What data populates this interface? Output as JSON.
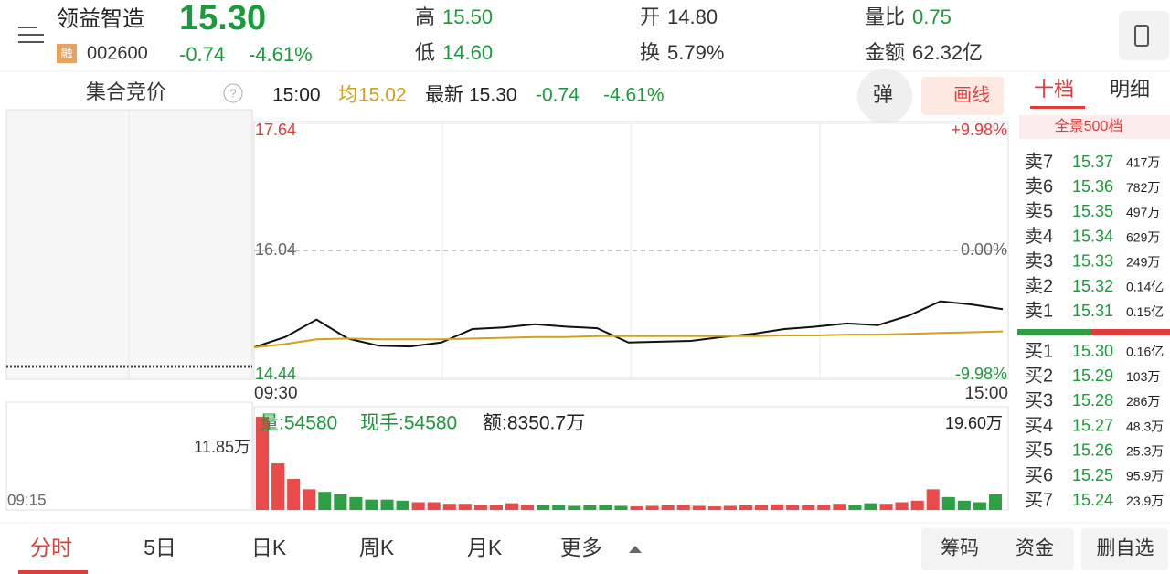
{
  "header": {
    "name": "领益智造",
    "price": "15.30",
    "badge": "融",
    "code": "002600",
    "change": "-0.74",
    "pct": "-4.61%",
    "stats": [
      {
        "label": "高",
        "value": "15.50",
        "color": "#1a9a3a"
      },
      {
        "label": "低",
        "value": "14.60",
        "color": "#1a9a3a"
      },
      {
        "label": "开",
        "value": "14.80",
        "color": "#333333"
      },
      {
        "label": "换",
        "value": "5.79%",
        "color": "#333333"
      },
      {
        "label": "量比",
        "value": "0.75",
        "color": "#1a9a3a"
      },
      {
        "label": "金额",
        "value": "62.32亿",
        "color": "#333333"
      }
    ]
  },
  "auction": {
    "title": "集合竞价",
    "time": "09:15",
    "volume": "11.85万"
  },
  "info": {
    "time": "15:00",
    "avg_label": "均",
    "avg": "15.02",
    "latest_label": "最新",
    "latest": "15.30",
    "change": "-0.74",
    "pct": "-4.61%",
    "popup": "弹",
    "draw": "画线"
  },
  "chart_data": {
    "type": "line",
    "ylim": [
      14.44,
      17.64
    ],
    "yticks": [
      17.64,
      16.04,
      14.44
    ],
    "pct_labels": [
      "+9.98%",
      "0.00%",
      "-9.98%"
    ],
    "x_labels": [
      "09:30",
      "15:00"
    ],
    "series": [
      {
        "name": "price",
        "color": "#111111",
        "values": [
          14.82,
          14.95,
          15.17,
          14.93,
          14.84,
          14.83,
          14.88,
          15.05,
          15.07,
          15.11,
          15.08,
          15.06,
          14.88,
          14.89,
          14.9,
          14.95,
          14.99,
          15.05,
          15.08,
          15.12,
          15.1,
          15.22,
          15.4,
          15.36,
          15.3
        ]
      },
      {
        "name": "average",
        "color": "#d4a017",
        "values": [
          14.82,
          14.86,
          14.92,
          14.93,
          14.92,
          14.92,
          14.92,
          14.93,
          14.94,
          14.95,
          14.95,
          14.96,
          14.96,
          14.96,
          14.96,
          14.96,
          14.96,
          14.97,
          14.97,
          14.98,
          14.98,
          14.99,
          15.0,
          15.01,
          15.02
        ]
      }
    ]
  },
  "volume_chart": {
    "type": "bar",
    "ylim": [
      0,
      19.6
    ],
    "max_label": "19.60万",
    "labels": [
      "量:54580",
      "现手:54580",
      "额:8350.7万"
    ],
    "up_color": "#e94b4b",
    "down_color": "#2ea043",
    "values": [
      18,
      9,
      6,
      4,
      3.5,
      3,
      2.5,
      2,
      2,
      1.8,
      1.5,
      1.5,
      1.2,
      1.2,
      1,
      1,
      1.3,
      1,
      0.9,
      1,
      0.8,
      0.9,
      1,
      0.8,
      0.7,
      0.8,
      0.9,
      1,
      0.8,
      0.7,
      0.8,
      0.9,
      1,
      1.1,
      1,
      0.9,
      1,
      1.2,
      1,
      1.3,
      1.2,
      1.5,
      1.8,
      4,
      2.5,
      1.8,
      1.5,
      3
    ]
  },
  "order_book": {
    "tabs": [
      "十档",
      "明细"
    ],
    "panorama": "全景500档",
    "asks": [
      [
        "卖7",
        "15.37",
        "417万"
      ],
      [
        "卖6",
        "15.36",
        "782万"
      ],
      [
        "卖5",
        "15.35",
        "497万"
      ],
      [
        "卖4",
        "15.34",
        "629万"
      ],
      [
        "卖3",
        "15.33",
        "249万"
      ],
      [
        "卖2",
        "15.32",
        "0.14亿"
      ],
      [
        "卖1",
        "15.31",
        "0.15亿"
      ]
    ],
    "bids": [
      [
        "买1",
        "15.30",
        "0.16亿"
      ],
      [
        "买2",
        "15.29",
        "103万"
      ],
      [
        "买3",
        "15.28",
        "286万"
      ],
      [
        "买4",
        "15.27",
        "48.3万"
      ],
      [
        "买5",
        "15.26",
        "25.3万"
      ],
      [
        "买6",
        "15.25",
        "95.9万"
      ],
      [
        "买7",
        "15.24",
        "23.9万"
      ]
    ]
  },
  "footer": {
    "tabs": [
      "分时",
      "5日",
      "日K",
      "周K",
      "月K",
      "更多"
    ],
    "buttons": [
      "筹码",
      "资金",
      "删自选"
    ]
  }
}
